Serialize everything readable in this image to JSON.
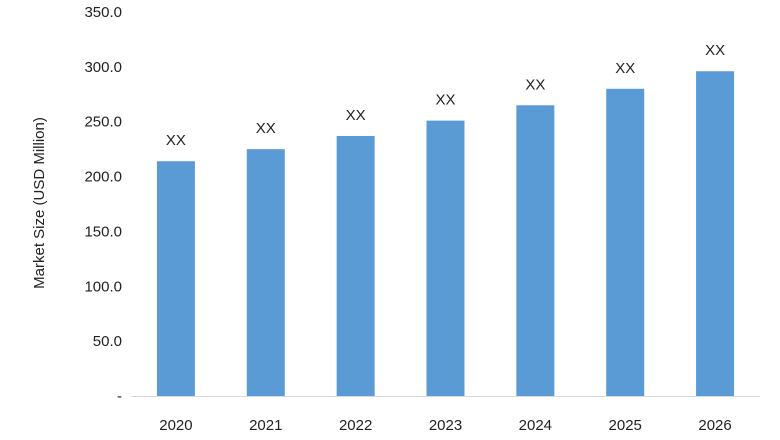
{
  "chart_data": {
    "type": "bar",
    "categories": [
      "2020",
      "2021",
      "2022",
      "2023",
      "2024",
      "2025",
      "2026"
    ],
    "values": [
      214,
      225,
      237,
      251,
      265,
      280,
      296
    ],
    "data_labels": [
      "XX",
      "XX",
      "XX",
      "XX",
      "XX",
      "XX",
      "XX"
    ],
    "title": "",
    "xlabel": "",
    "ylabel": "Market Size (USD Million)",
    "ylim": [
      0,
      350
    ],
    "y_ticks": [
      0,
      50,
      100,
      150,
      200,
      250,
      300,
      350
    ],
    "y_tick_labels": [
      "-",
      "50.0",
      "100.0",
      "150.0",
      "200.0",
      "250.0",
      "300.0",
      "350.0"
    ],
    "grid": false,
    "legend": "none",
    "bar_color": "#5B9BD5"
  }
}
